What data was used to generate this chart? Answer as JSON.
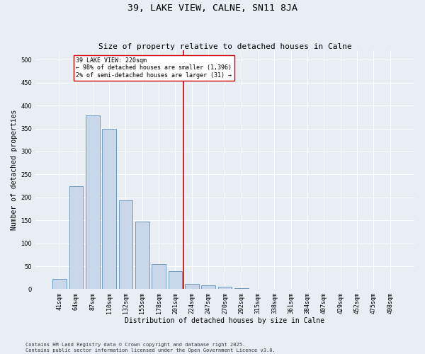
{
  "title": "39, LAKE VIEW, CALNE, SN11 8JA",
  "subtitle": "Size of property relative to detached houses in Calne",
  "xlabel": "Distribution of detached houses by size in Calne",
  "ylabel": "Number of detached properties",
  "footnote1": "Contains HM Land Registry data © Crown copyright and database right 2025.",
  "footnote2": "Contains public sector information licensed under the Open Government Licence v3.0.",
  "categories": [
    "41sqm",
    "64sqm",
    "87sqm",
    "110sqm",
    "132sqm",
    "155sqm",
    "178sqm",
    "201sqm",
    "224sqm",
    "247sqm",
    "270sqm",
    "292sqm",
    "315sqm",
    "338sqm",
    "361sqm",
    "384sqm",
    "407sqm",
    "429sqm",
    "452sqm",
    "475sqm",
    "498sqm"
  ],
  "values": [
    22,
    225,
    378,
    350,
    193,
    147,
    55,
    40,
    12,
    8,
    5,
    3,
    1,
    0,
    0,
    0,
    1,
    0,
    0,
    1,
    0
  ],
  "bar_color_fill": "#c8d8ea",
  "bar_color_edge": "#6090b8",
  "vline_x_index": 8,
  "vline_color": "#cc0000",
  "annotation_text": "39 LAKE VIEW: 220sqm\n← 98% of detached houses are smaller (1,396)\n2% of semi-detached houses are larger (31) →",
  "annotation_box_color": "#ffffff",
  "annotation_box_edge": "#cc0000",
  "ylim": [
    0,
    520
  ],
  "yticks": [
    0,
    50,
    100,
    150,
    200,
    250,
    300,
    350,
    400,
    450,
    500
  ],
  "bg_color": "#e8eef4",
  "grid_color": "#ffffff",
  "title_fontsize": 9.5,
  "subtitle_fontsize": 8,
  "axis_label_fontsize": 7,
  "tick_fontsize": 6,
  "annotation_fontsize": 6,
  "footnote_fontsize": 5
}
